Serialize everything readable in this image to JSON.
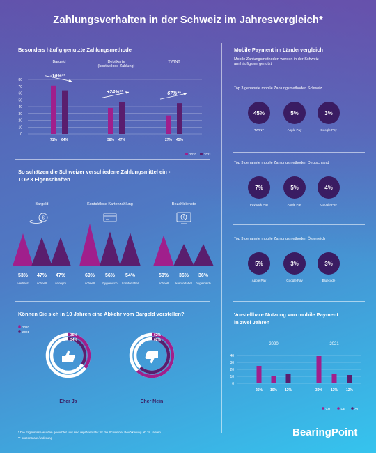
{
  "title": "Zahlungsverhalten in der Schweiz im Jahresvergleich*",
  "colors": {
    "y2020": "#a01f8c",
    "y2021": "#5a1e6e",
    "circle": "#3a1c62"
  },
  "sec1": {
    "title": "Besonders häufig genutzte Zahlungsmethode",
    "chart_data": {
      "type": "bar",
      "categories": [
        "Bargeld",
        "Debitkarte (kontaktlose Zahlung)",
        "TWINT"
      ],
      "category_lines": [
        [
          "Bargeld"
        ],
        [
          "Debitkarte",
          "(kontaktlose Zahlung)"
        ],
        [
          "TWINT"
        ]
      ],
      "series": [
        {
          "name": "2020",
          "values": [
            71,
            38,
            27
          ]
        },
        {
          "name": "2021",
          "values": [
            64,
            47,
            45
          ]
        }
      ],
      "value_labels": [
        [
          "71%",
          "64%"
        ],
        [
          "38%",
          "47%"
        ],
        [
          "27%",
          "45%"
        ]
      ],
      "changes": [
        "-10%**",
        "+24%**",
        "+67%**"
      ],
      "yticks": [
        0,
        10,
        20,
        30,
        40,
        50,
        60,
        70,
        80
      ],
      "ylim": [
        0,
        80
      ],
      "legend": [
        "2020",
        "2021"
      ],
      "legend_position": "bottom-right",
      "grid": true
    }
  },
  "sec2": {
    "title_line1": "So schätzen die Schweizer verschiedene Zahlungsmittel ein -",
    "title_line2": "TOP 3 Eigenschaften",
    "groups": [
      {
        "name": "Bargeld",
        "icon": "coins-icon",
        "values": [
          53,
          47,
          47
        ],
        "labels": [
          "53%",
          "47%",
          "47%"
        ],
        "props": [
          "vertraut",
          "schnell",
          "anonym"
        ]
      },
      {
        "name": "Kontaktlose Kartenzahlung",
        "icon": "card-icon",
        "values": [
          69,
          56,
          54
        ],
        "labels": [
          "69%",
          "56%",
          "54%"
        ],
        "props": [
          "schnell",
          "hygienisch",
          "komfortabel"
        ]
      },
      {
        "name": "Bezahldienste",
        "icon": "mobile-pay-icon",
        "values": [
          50,
          36,
          36
        ],
        "labels": [
          "50%",
          "36%",
          "36%"
        ],
        "props": [
          "schnell",
          "komfortabel",
          "hygienisch"
        ]
      }
    ]
  },
  "sec3": {
    "title": "Können Sie sich in 10 Jahren eine Abkehr vom Bargeld vorstellen?",
    "legend": [
      "2020",
      "2021"
    ],
    "chart_data": {
      "type": "pie",
      "categories": [
        "Eher Ja",
        "Eher Nein"
      ],
      "series": [
        {
          "name": "2020",
          "values": [
            35,
            62
          ]
        },
        {
          "name": "2021",
          "values": [
            34,
            62
          ]
        }
      ]
    },
    "ja": {
      "label": "Eher Ja",
      "v2020": "35%",
      "v2021": "34%"
    },
    "nein": {
      "label": "Eher Nein",
      "v2020": "62%",
      "v2021": "62%"
    }
  },
  "right": {
    "title": "Mobile Payment im Ländervergleich",
    "subtitle_line1": "Mobile Zahlungsmethoden werden in der Schweiz",
    "subtitle_line2": "am häufigsten genutzt",
    "countries": [
      {
        "title": "Top 3 genannte mobile Zahlungsmethoden Schweiz",
        "items": [
          {
            "value": "45%",
            "name": "TWINT"
          },
          {
            "value": "5%",
            "name": "Apple Pay"
          },
          {
            "value": "3%",
            "name": "Google Pay"
          }
        ]
      },
      {
        "title": "Top 3 genannte mobile Zahlungsmethoden Deutschland",
        "items": [
          {
            "value": "7%",
            "name": "Payback Pay"
          },
          {
            "value": "5%",
            "name": "Apple Pay"
          },
          {
            "value": "4%",
            "name": "Google Pay"
          }
        ]
      },
      {
        "title": "Top 3 genannte mobile Zahlungsmethoden Österreich",
        "items": [
          {
            "value": "5%",
            "name": "Apple Pay"
          },
          {
            "value": "3%",
            "name": "Google Pay"
          },
          {
            "value": "3%",
            "name": "Bluecode"
          }
        ]
      }
    ]
  },
  "sec4": {
    "title_line1": "Vorstellbare Nutzung von mobile Payment",
    "title_line2": "in zwei Jahren",
    "chart_data": {
      "type": "bar",
      "groups": [
        "2020",
        "2021"
      ],
      "series_names": [
        "CH",
        "DE",
        "AT"
      ],
      "values": [
        [
          25,
          10,
          13
        ],
        [
          39,
          13,
          12
        ]
      ],
      "labels": [
        [
          "25%",
          "10%",
          "13%"
        ],
        [
          "39%",
          "13%",
          "12%"
        ]
      ],
      "yticks": [
        0,
        10,
        20,
        30,
        40
      ],
      "ylim": [
        0,
        40
      ],
      "legend": [
        "CH",
        "DE",
        "AT"
      ],
      "legend_position": "bottom-right",
      "grid": true
    }
  },
  "footnotes": [
    "* Die Ergebnisse wurden gewichtet und sind repräsentativ für die Schweizer Bevölkerung ab 18 Jahren.",
    "** prozentuale Änderung"
  ],
  "brand": "BearingPoint"
}
